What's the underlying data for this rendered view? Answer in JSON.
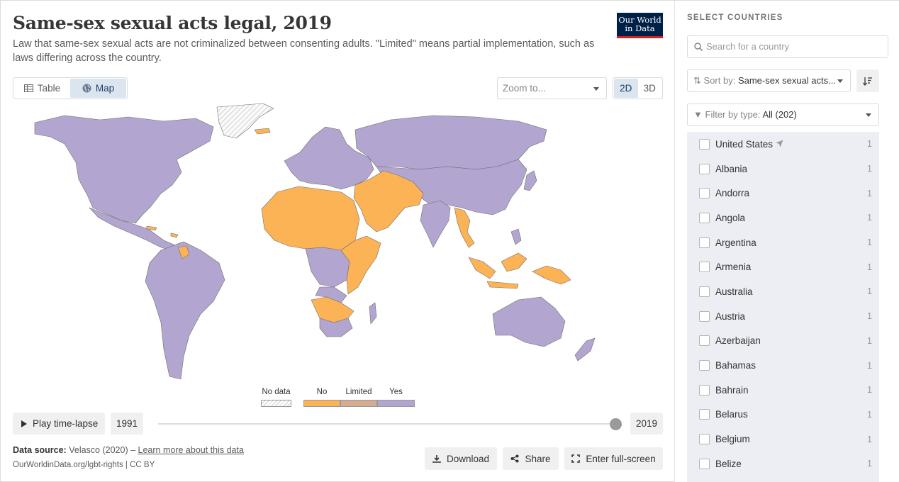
{
  "header": {
    "title": "Same-sex sexual acts legal, 2019",
    "subtitle": "Law that same-sex sexual acts are not criminalized between consenting adults. \"Limited\" means partial implementation, such as laws differing across the country.",
    "logo_line1": "Our World",
    "logo_line2": "in Data"
  },
  "tabs": [
    {
      "label": "Table",
      "icon": "table-icon",
      "active": false
    },
    {
      "label": "Map",
      "icon": "globe-icon",
      "active": true
    }
  ],
  "zoom": {
    "placeholder": "Zoom to..."
  },
  "projection": {
    "options": [
      "2D",
      "3D"
    ],
    "selected": "2D"
  },
  "legend": [
    {
      "label": "No data",
      "color": "#f2f2f2",
      "hatched": true
    },
    {
      "label": "No",
      "color": "#fcb356"
    },
    {
      "label": "Limited",
      "color": "#d5ab92"
    },
    {
      "label": "Yes",
      "color": "#b2a6d1"
    }
  ],
  "colors": {
    "yes": "#b2a6d1",
    "no": "#fcb356",
    "limited": "#d5ab92",
    "nodata": "#f2f2f2",
    "border": "#6e6e6e"
  },
  "timeline": {
    "play_label": "Play time-lapse",
    "start_year": "1991",
    "end_year": "2019",
    "position": 1.0
  },
  "footer": {
    "source_label": "Data source:",
    "source_text": "Velasco (2020) –",
    "learn_more": "Learn more about this data",
    "url": "OurWorldinData.org/lgbt-rights | CC BY"
  },
  "actions": {
    "download": "Download",
    "share": "Share",
    "fullscreen": "Enter full-screen"
  },
  "sidebar": {
    "title": "SELECT COUNTRIES",
    "search_placeholder": "Search for a country",
    "sort_label": "Sort by:",
    "sort_value": "Same-sex sexual acts...",
    "filter_label": "Filter by type:",
    "filter_value": "All (202)",
    "countries": [
      {
        "name": "United States",
        "count": "1",
        "located": true
      },
      {
        "name": "Albania",
        "count": "1"
      },
      {
        "name": "Andorra",
        "count": "1"
      },
      {
        "name": "Angola",
        "count": "1"
      },
      {
        "name": "Argentina",
        "count": "1"
      },
      {
        "name": "Armenia",
        "count": "1"
      },
      {
        "name": "Australia",
        "count": "1"
      },
      {
        "name": "Austria",
        "count": "1"
      },
      {
        "name": "Azerbaijan",
        "count": "1"
      },
      {
        "name": "Bahamas",
        "count": "1"
      },
      {
        "name": "Bahrain",
        "count": "1"
      },
      {
        "name": "Belarus",
        "count": "1"
      },
      {
        "name": "Belgium",
        "count": "1"
      },
      {
        "name": "Belize",
        "count": "1"
      }
    ]
  }
}
